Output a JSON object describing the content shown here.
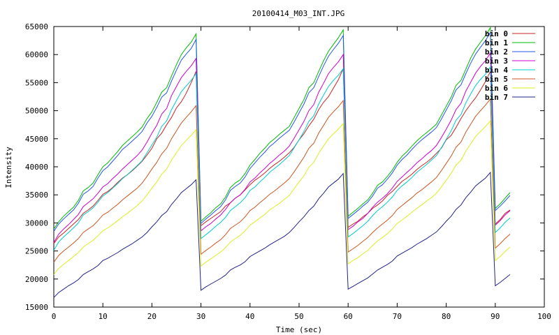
{
  "chart_data": {
    "type": "line",
    "title": "20100414_M03_INT.JPG",
    "xlabel": "Time (sec)",
    "ylabel": "Intensity",
    "xlim": [
      0,
      100
    ],
    "ylim": [
      15000,
      65000
    ],
    "xticks": [
      "0",
      "10",
      "20",
      "30",
      "40",
      "50",
      "60",
      "70",
      "80",
      "90",
      "100"
    ],
    "yticks": [
      "15000",
      "20000",
      "25000",
      "30000",
      "35000",
      "40000",
      "45000",
      "50000",
      "55000",
      "60000",
      "65000"
    ],
    "grid": false,
    "legend_position": "top-right",
    "x": [
      0,
      1,
      2,
      3,
      4,
      5,
      6,
      7,
      8,
      9,
      10,
      11,
      12,
      13,
      14,
      15,
      16,
      17,
      18,
      19,
      20,
      21,
      22,
      23,
      24,
      25,
      26,
      27,
      28,
      29,
      30,
      31,
      32,
      33,
      34,
      35,
      36,
      37,
      38,
      39,
      40,
      41,
      42,
      43,
      44,
      45,
      46,
      47,
      48,
      49,
      50,
      51,
      52,
      53,
      54,
      55,
      56,
      57,
      58,
      59,
      60,
      61,
      62,
      63,
      64,
      65,
      66,
      67,
      68,
      69,
      70,
      71,
      72,
      73,
      74,
      75,
      76,
      77,
      78,
      79,
      80,
      81,
      82,
      83,
      84,
      85,
      86,
      87,
      88,
      89,
      90,
      91,
      92,
      93
    ],
    "series": [
      {
        "name": "bin 0",
        "color": "#cc2222",
        "values": [
          26300,
          27500,
          28200,
          29000,
          29800,
          30600,
          31700,
          32300,
          33000,
          34000,
          35100,
          35600,
          36300,
          37200,
          38000,
          38600,
          39300,
          40100,
          41000,
          42100,
          43300,
          45000,
          46000,
          47500,
          48800,
          50500,
          51600,
          53100,
          55000,
          57000,
          29500,
          30200,
          30800,
          31400,
          32000,
          33000,
          33600,
          34400,
          35000,
          35900,
          36800,
          37600,
          38200,
          38900,
          39700,
          40400,
          41000,
          41700,
          42500,
          43500,
          44800,
          45900,
          47300,
          48500,
          50200,
          51500,
          52500,
          54000,
          55500,
          57500,
          29200,
          29800,
          30300,
          31100,
          31700,
          32600,
          33200,
          33900,
          34900,
          35600,
          36500,
          37400,
          38000,
          38700,
          39500,
          40200,
          40800,
          41500,
          42400,
          43300,
          44800,
          45600,
          47000,
          48600,
          50000,
          51200,
          52300,
          53700,
          55200,
          57000,
          29800,
          30600,
          31700,
          32300
        ]
      },
      {
        "name": "bin 1",
        "color": "#00bb00",
        "values": [
          28900,
          30200,
          31200,
          32000,
          32800,
          34000,
          35700,
          36300,
          37100,
          38600,
          40000,
          40700,
          41700,
          42700,
          43800,
          44600,
          45400,
          46200,
          47100,
          48600,
          49800,
          51500,
          53300,
          54100,
          56200,
          58200,
          60000,
          61200,
          62200,
          63700,
          30300,
          31100,
          31800,
          32700,
          33400,
          34600,
          36300,
          37100,
          37700,
          38800,
          40300,
          41300,
          42400,
          43300,
          44300,
          45000,
          45800,
          46500,
          47200,
          48800,
          50400,
          52000,
          54100,
          55000,
          57000,
          58900,
          60600,
          61800,
          63000,
          64400,
          31200,
          31900,
          32600,
          33400,
          34100,
          35300,
          36700,
          37300,
          38300,
          39400,
          40800,
          41900,
          42700,
          43700,
          44600,
          45400,
          46100,
          46800,
          47600,
          49200,
          50800,
          52400,
          54500,
          55400,
          57400,
          59400,
          61000,
          62200,
          63400,
          64800,
          32600,
          33400,
          34400,
          35400
        ]
      },
      {
        "name": "bin 2",
        "color": "#2255ee",
        "values": [
          28500,
          29800,
          30700,
          31500,
          32300,
          33500,
          35100,
          35700,
          36500,
          38000,
          39300,
          40000,
          41000,
          42000,
          43100,
          43800,
          44600,
          45400,
          46300,
          47800,
          49000,
          50600,
          52400,
          53200,
          55300,
          57200,
          59000,
          60100,
          61100,
          62700,
          29900,
          30700,
          31400,
          32200,
          32900,
          34100,
          35800,
          36500,
          37100,
          38200,
          39700,
          40700,
          41700,
          42600,
          43600,
          44300,
          45100,
          45800,
          46500,
          48000,
          49600,
          51200,
          53200,
          54100,
          56100,
          58000,
          59700,
          60900,
          62000,
          63400,
          30800,
          31500,
          32200,
          33000,
          33700,
          34800,
          36200,
          36800,
          37800,
          38900,
          40300,
          41300,
          42100,
          43100,
          44000,
          44800,
          45500,
          46200,
          47000,
          48500,
          50100,
          51700,
          53700,
          54600,
          56600,
          58500,
          60100,
          61300,
          62500,
          63900,
          32200,
          33000,
          33900,
          34900
        ]
      },
      {
        "name": "bin 3",
        "color": "#cc00cc",
        "values": [
          26500,
          28000,
          28900,
          29700,
          30600,
          31500,
          32900,
          33600,
          34300,
          35300,
          36400,
          37000,
          37900,
          38700,
          39600,
          40400,
          41200,
          42000,
          43000,
          44400,
          46000,
          47400,
          49400,
          50400,
          52700,
          54300,
          55900,
          57000,
          58000,
          59300,
          28600,
          29300,
          29900,
          30700,
          31400,
          32400,
          33600,
          34400,
          35000,
          36000,
          37300,
          38000,
          38900,
          39700,
          40600,
          41300,
          42100,
          42800,
          43700,
          45100,
          46600,
          48100,
          50000,
          51100,
          53300,
          54900,
          56600,
          57700,
          58700,
          60000,
          28800,
          29400,
          30200,
          30800,
          31700,
          32800,
          33700,
          34400,
          35200,
          36200,
          37400,
          38200,
          39000,
          39800,
          40700,
          41400,
          42200,
          42900,
          43800,
          45200,
          46700,
          48300,
          50200,
          51300,
          53500,
          55100,
          56700,
          57900,
          58900,
          60300,
          29600,
          30400,
          31400,
          32200
        ]
      },
      {
        "name": "bin 4",
        "color": "#00cccc",
        "values": [
          25100,
          26600,
          27500,
          28300,
          29100,
          30000,
          31400,
          32000,
          32700,
          33700,
          34800,
          35400,
          36200,
          37000,
          37900,
          38600,
          39400,
          40200,
          41100,
          42500,
          43900,
          45300,
          47200,
          48200,
          50200,
          51800,
          53400,
          54400,
          55400,
          56600,
          27200,
          27900,
          28600,
          29400,
          30100,
          31000,
          32200,
          32900,
          33600,
          34500,
          35800,
          36400,
          37300,
          38100,
          39000,
          39700,
          40400,
          41200,
          42000,
          43400,
          44800,
          46300,
          48100,
          49100,
          51200,
          52800,
          54300,
          55400,
          56300,
          57500,
          27500,
          28100,
          28800,
          29500,
          30300,
          31300,
          32200,
          32900,
          33700,
          34600,
          35800,
          36600,
          37300,
          38100,
          39000,
          39700,
          40400,
          41200,
          42000,
          43400,
          44900,
          46400,
          48300,
          49300,
          51400,
          53000,
          54500,
          55600,
          56500,
          57800,
          28300,
          29100,
          30100,
          30900
        ]
      },
      {
        "name": "bin 5",
        "color": "#cc5522",
        "values": [
          23000,
          24200,
          25000,
          25700,
          26400,
          27200,
          28300,
          28900,
          29500,
          30400,
          31400,
          31900,
          32600,
          33300,
          34100,
          34800,
          35500,
          36200,
          37100,
          38300,
          39600,
          40800,
          42300,
          43300,
          45000,
          46400,
          47800,
          48800,
          49800,
          50900,
          24400,
          25100,
          25700,
          26400,
          27000,
          27900,
          29000,
          29600,
          30200,
          31100,
          32200,
          32800,
          33600,
          34300,
          35100,
          35700,
          36400,
          37100,
          37900,
          39100,
          40400,
          41700,
          43300,
          44200,
          46000,
          47400,
          48800,
          49800,
          50700,
          51800,
          24800,
          25400,
          26000,
          26700,
          27400,
          28300,
          29100,
          29800,
          30500,
          31300,
          32400,
          33100,
          33800,
          34500,
          35300,
          35900,
          36600,
          37300,
          38100,
          39300,
          40600,
          41900,
          43500,
          44400,
          46200,
          47600,
          49000,
          50000,
          51000,
          52100,
          25500,
          26300,
          27200,
          28000
        ]
      },
      {
        "name": "bin 6",
        "color": "#ddee22",
        "values": [
          20800,
          21900,
          22600,
          23300,
          24000,
          24700,
          25700,
          26300,
          26900,
          27700,
          28600,
          29100,
          29700,
          30400,
          31100,
          31700,
          32400,
          33100,
          33900,
          35000,
          36200,
          37300,
          38700,
          39600,
          41200,
          42500,
          43800,
          44700,
          45600,
          46600,
          22300,
          23000,
          23600,
          24200,
          24800,
          25600,
          26600,
          27200,
          27800,
          28600,
          29600,
          30200,
          30900,
          31500,
          32300,
          32900,
          33500,
          34200,
          34900,
          36100,
          37300,
          38400,
          39900,
          40800,
          42400,
          43700,
          45000,
          45900,
          46700,
          47700,
          22700,
          23300,
          23800,
          24500,
          25100,
          26000,
          26800,
          27400,
          28100,
          28900,
          29900,
          30500,
          31200,
          31900,
          32600,
          33200,
          33900,
          34500,
          35300,
          36400,
          37600,
          38800,
          40300,
          41200,
          42800,
          44100,
          45400,
          46300,
          47200,
          48200,
          23300,
          24000,
          24900,
          25700
        ]
      },
      {
        "name": "bin 7",
        "color": "#222288",
        "values": [
          16700,
          17600,
          18200,
          18800,
          19300,
          19900,
          20800,
          21300,
          21800,
          22400,
          23300,
          23700,
          24200,
          24700,
          25300,
          25800,
          26300,
          26900,
          27500,
          28300,
          29300,
          30200,
          31300,
          32000,
          33300,
          34300,
          35400,
          36100,
          36800,
          37700,
          18000,
          18600,
          19100,
          19600,
          20100,
          20700,
          21600,
          22100,
          22500,
          23100,
          24000,
          24500,
          25000,
          25500,
          26100,
          26600,
          27100,
          27600,
          28300,
          29200,
          30200,
          31100,
          32200,
          33000,
          34300,
          35300,
          36400,
          37100,
          37800,
          38800,
          18200,
          18700,
          19200,
          19700,
          20200,
          20900,
          21600,
          22100,
          22600,
          23200,
          24100,
          24600,
          25100,
          25600,
          26200,
          26700,
          27200,
          27800,
          28400,
          29300,
          30300,
          31200,
          32400,
          33200,
          34500,
          35500,
          36600,
          37300,
          38000,
          39000,
          18800,
          19400,
          20100,
          20800
        ]
      }
    ]
  }
}
